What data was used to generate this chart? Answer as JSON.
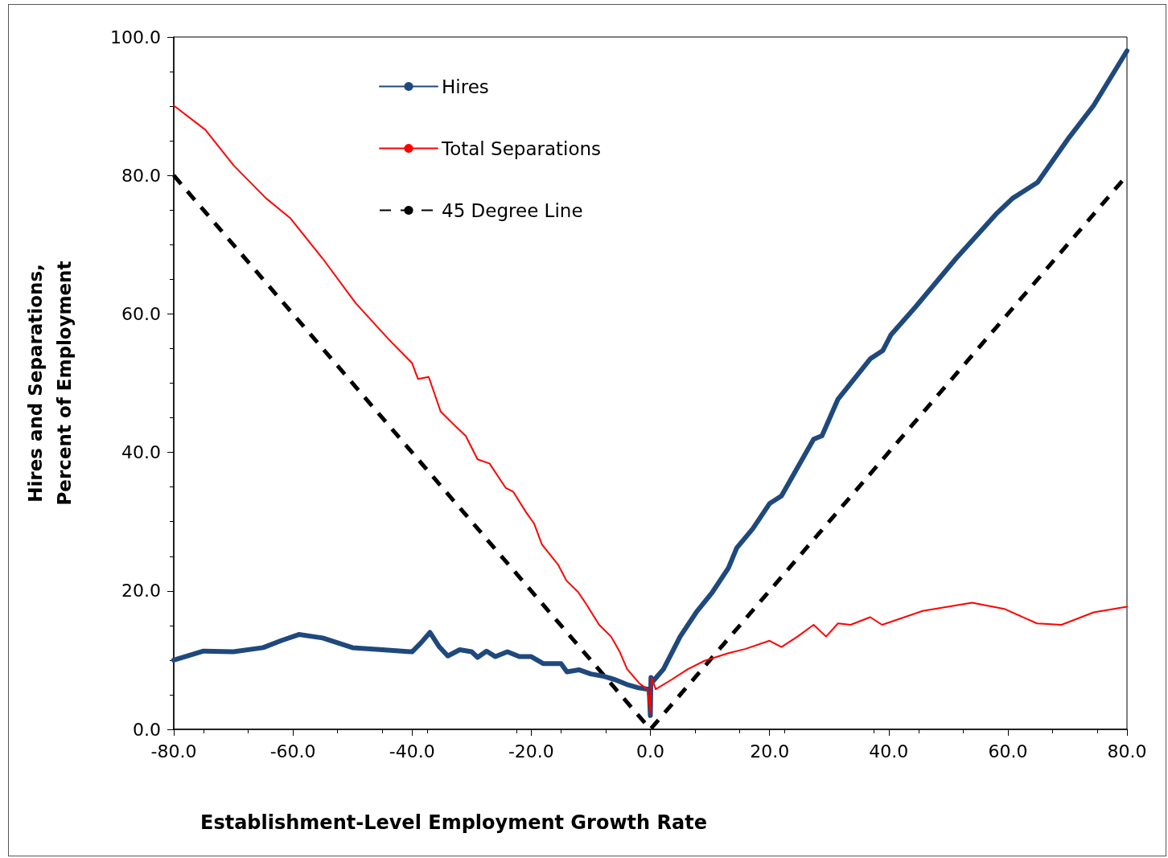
{
  "chart_data": {
    "type": "line",
    "xlabel": "Establishment-Level Employment Growth Rate",
    "ylabel": "Hires and Separations,\nPercent of Employment",
    "xlim": [
      -80,
      80
    ],
    "ylim": [
      0,
      100
    ],
    "xticks": [
      {
        "value": -80,
        "label": "-80.0"
      },
      {
        "value": -60,
        "label": "-60.0"
      },
      {
        "value": -40,
        "label": "-40.0"
      },
      {
        "value": -20,
        "label": "-20.0"
      },
      {
        "value": 0,
        "label": "0.0"
      },
      {
        "value": 20,
        "label": "20.0"
      },
      {
        "value": 40,
        "label": "40.0"
      },
      {
        "value": 60,
        "label": "60.0"
      },
      {
        "value": 80,
        "label": "80.0"
      }
    ],
    "yticks": [
      {
        "value": 0,
        "label": "0.0"
      },
      {
        "value": 20,
        "label": "20.0"
      },
      {
        "value": 40,
        "label": "40.0"
      },
      {
        "value": 60,
        "label": "60.0"
      },
      {
        "value": 80,
        "label": "80.0"
      },
      {
        "value": 100,
        "label": "100.0"
      }
    ],
    "grid": false,
    "legend": "top left",
    "marker": "none",
    "series": [
      {
        "name": "Hires",
        "color": "#1f497d",
        "line_style": "solid",
        "x": [
          -80,
          -75,
          -70,
          -65,
          -62,
          -59,
          -55,
          -50,
          -45,
          -40,
          -38.5,
          -37,
          -35.5,
          -34,
          -32,
          -30,
          -29,
          -27.5,
          -26,
          -24,
          -22,
          -20,
          -18,
          -15,
          -14,
          -12,
          -10,
          -8,
          -6,
          -4,
          -2,
          -0.5,
          -0.2,
          0,
          0.1,
          0.5,
          2.2,
          5,
          7.7,
          10.4,
          13.1,
          14.5,
          17.2,
          20,
          22,
          24.7,
          27.4,
          28.8,
          31.5,
          34.2,
          36.9,
          39,
          40.4,
          44.5,
          51.3,
          58,
          60.8,
          65,
          70.3,
          74.4,
          80
        ],
        "values": [
          10.0,
          11.3,
          11.2,
          11.8,
          12.8,
          13.7,
          13.2,
          11.8,
          11.5,
          11.2,
          12.5,
          14.0,
          12.0,
          10.6,
          11.5,
          11.2,
          10.4,
          11.3,
          10.5,
          11.2,
          10.5,
          10.5,
          9.5,
          9.5,
          8.3,
          8.6,
          8.0,
          7.7,
          7.2,
          6.5,
          6.0,
          5.8,
          5.8,
          2.0,
          7.5,
          7.0,
          8.7,
          13.4,
          16.9,
          19.8,
          23.3,
          26.2,
          29.0,
          32.6,
          33.7,
          37.8,
          41.9,
          42.4,
          47.7,
          50.6,
          53.5,
          54.7,
          57.0,
          61.0,
          68.0,
          74.4,
          76.7,
          79.0,
          85.5,
          90.1,
          98.0
        ]
      },
      {
        "name": "Total Separations",
        "color": "#ff0000",
        "line_style": "solid",
        "x": [
          -80,
          -74.7,
          -69.9,
          -64.5,
          -60.4,
          -55,
          -49.5,
          -44,
          -40,
          -39,
          -37.2,
          -35.2,
          -32.5,
          -31,
          -29,
          -27,
          -24.3,
          -23,
          -20.9,
          -19.5,
          -18.2,
          -15.5,
          -14.1,
          -12.1,
          -10.7,
          -8.6,
          -6.6,
          -5.2,
          -3.9,
          -1.8,
          -0.5,
          0,
          0.2,
          0.9,
          3.6,
          6.3,
          9.1,
          13.1,
          15.9,
          20,
          22,
          24.7,
          27.4,
          29.5,
          31.5,
          33.6,
          36.9,
          38.9,
          45.7,
          54,
          59.4,
          64.9,
          69,
          74.4,
          80
        ],
        "values": [
          90.1,
          86.6,
          81.4,
          76.7,
          73.8,
          68.0,
          61.6,
          56.4,
          52.9,
          50.6,
          50.9,
          45.9,
          43.6,
          42.4,
          39.0,
          38.4,
          34.9,
          34.3,
          31.4,
          29.7,
          26.7,
          23.8,
          21.5,
          19.8,
          18.0,
          15.1,
          13.4,
          11.3,
          8.7,
          6.6,
          5.8,
          2.3,
          7.5,
          5.8,
          7.2,
          8.7,
          9.9,
          11.0,
          11.6,
          12.8,
          11.9,
          13.4,
          15.1,
          13.4,
          15.3,
          15.1,
          16.2,
          15.1,
          17.1,
          18.3,
          17.4,
          15.3,
          15.1,
          16.9,
          17.7
        ]
      },
      {
        "name": "45 Degree Line",
        "color": "#000000",
        "line_style": "dashed",
        "x": [
          -80,
          0,
          80
        ],
        "values": [
          80,
          0,
          80
        ]
      }
    ]
  }
}
